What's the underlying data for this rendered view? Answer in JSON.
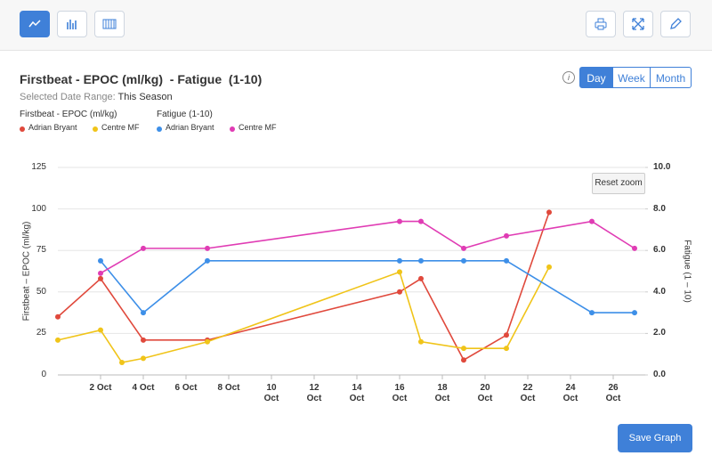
{
  "ui": {
    "title": "Firstbeat - EPOC (ml/kg)  - Fatigue  (1-10)",
    "range_label": "Selected Date Range:",
    "range_value": "This Season",
    "views": [
      "Day",
      "Week",
      "Month"
    ],
    "active_view": "Day",
    "reset": "Reset zoom",
    "save": "Save Graph"
  },
  "chart_data": {
    "type": "line",
    "ylabel": "Firstbeat – EPOC (ml/kg)",
    "y2label": "Fatigue (1 – 10)",
    "xlim": [
      0,
      27.5
    ],
    "xticks": [
      {
        "value": 2,
        "label": "2 Oct"
      },
      {
        "value": 4,
        "label": "4 Oct"
      },
      {
        "value": 6,
        "label": "6 Oct"
      },
      {
        "value": 8,
        "label": "8 Oct"
      },
      {
        "value": 10,
        "label": "10 Oct"
      },
      {
        "value": 12,
        "label": "12 Oct"
      },
      {
        "value": 14,
        "label": "14 Oct"
      },
      {
        "value": 16,
        "label": "16 Oct"
      },
      {
        "value": 18,
        "label": "18 Oct"
      },
      {
        "value": 20,
        "label": "20 Oct"
      },
      {
        "value": 22,
        "label": "22 Oct"
      },
      {
        "value": 24,
        "label": "24 Oct"
      },
      {
        "value": 26,
        "label": "26 Oct"
      }
    ],
    "ylim": [
      0,
      125
    ],
    "yticks": [
      0,
      25,
      50,
      75,
      100,
      125
    ],
    "y2lim": [
      0,
      10
    ],
    "y2ticks": [
      {
        "value": 0,
        "label": "0.0"
      },
      {
        "value": 2,
        "label": "2.0"
      },
      {
        "value": 4,
        "label": "4.0"
      },
      {
        "value": 6,
        "label": "6.0"
      },
      {
        "value": 8,
        "label": "8.0"
      },
      {
        "value": 10,
        "label": "10.0"
      }
    ],
    "grid": true,
    "series_groups": [
      {
        "title": "Firstbeat - EPOC (ml/kg)",
        "axis": "y",
        "series": [
          {
            "name": "Adrian Bryant",
            "color": "#e0493c",
            "x": [
              0,
              2,
              4,
              7,
              16,
              17,
              19,
              21,
              23
            ],
            "values": [
              35,
              58,
              21,
              21,
              50,
              58,
              9,
              24,
              98
            ]
          },
          {
            "name": "Centre MF",
            "color": "#f0c419",
            "x": [
              0,
              2,
              3,
              4,
              7,
              16,
              17,
              19,
              21,
              23
            ],
            "values": [
              21,
              27,
              7.5,
              10,
              20,
              62,
              20,
              16,
              16,
              65
            ]
          }
        ]
      },
      {
        "title": "Fatigue (1-10)",
        "axis": "y2",
        "series": [
          {
            "name": "Adrian Bryant",
            "color": "#3d8fe8",
            "x": [
              2,
              4,
              7,
              16,
              17,
              19,
              21,
              25,
              27
            ],
            "values": [
              5.5,
              3,
              5.5,
              5.5,
              5.5,
              5.5,
              5.5,
              3,
              3
            ]
          },
          {
            "name": "Centre MF",
            "color": "#e03cb4",
            "x": [
              2,
              4,
              7,
              16,
              17,
              19,
              21,
              25,
              27
            ],
            "values": [
              4.9,
              6.1,
              6.1,
              7.4,
              7.4,
              6.1,
              6.7,
              7.4,
              6.1
            ]
          }
        ]
      }
    ]
  }
}
